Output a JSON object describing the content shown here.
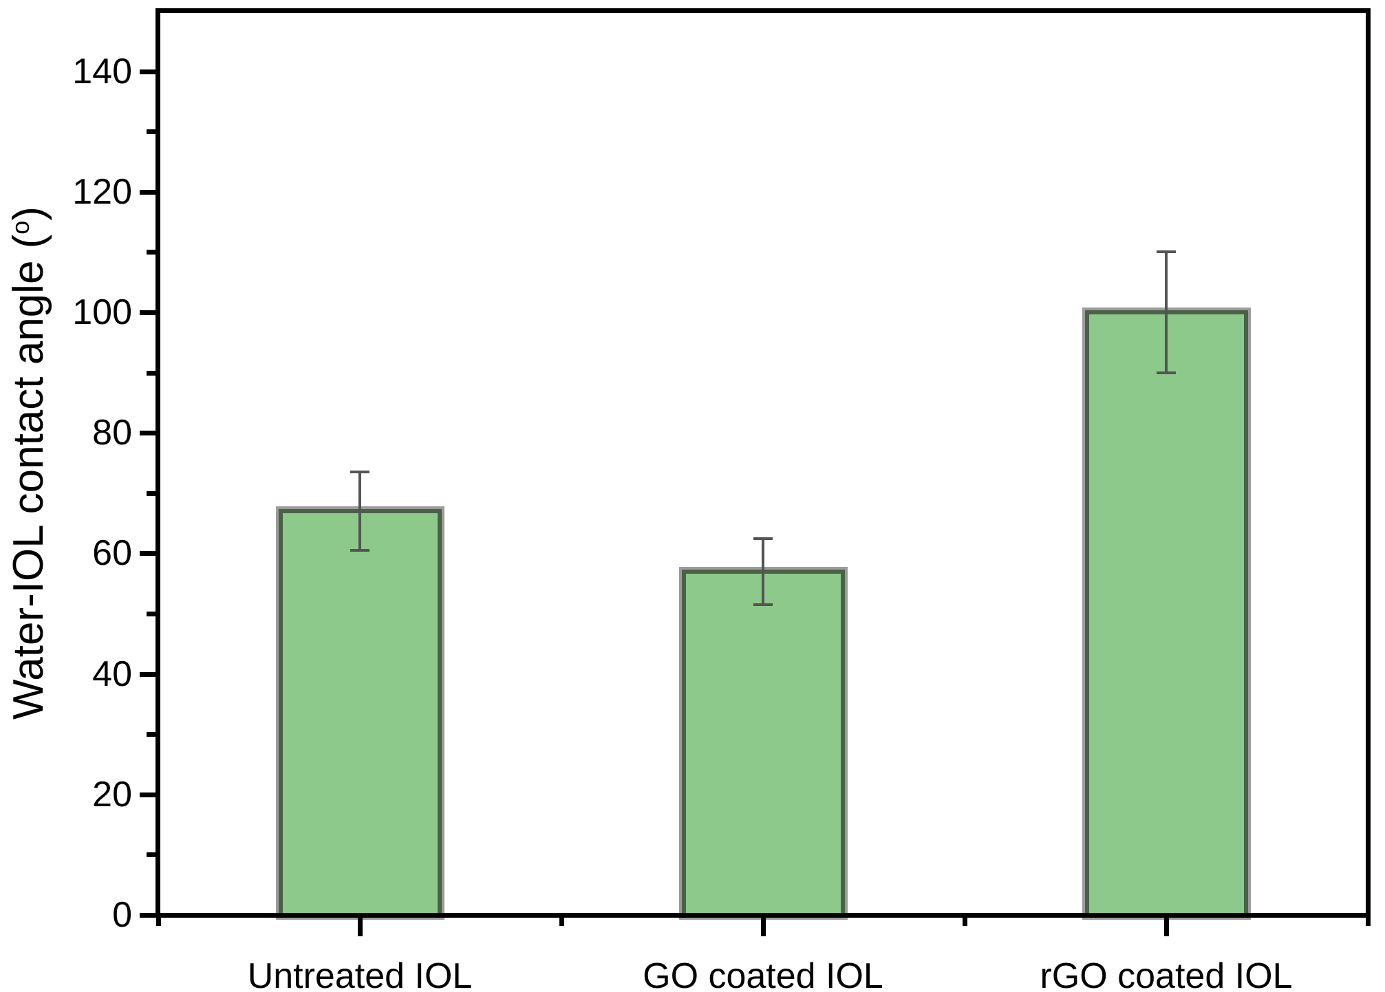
{
  "chart_data": {
    "type": "bar",
    "title": "",
    "xlabel": "",
    "ylabel": "Water-IOL contact angle (°)",
    "ylabel_render": {
      "pre": "Water-IOL contact angle (",
      "sup": "o",
      "post": ")"
    },
    "categories": [
      "Untreated IOL",
      "GO coated IOL",
      "rGO coated IOL"
    ],
    "series": [
      {
        "name": "Water-IOL contact angle",
        "values": [
          67,
          57,
          100
        ],
        "errors_plus": [
          6.5,
          5.5,
          10
        ],
        "errors_minus": [
          6.5,
          5.5,
          10
        ]
      }
    ],
    "ylim": [
      0,
      150
    ],
    "y_major_ticks": [
      0,
      20,
      40,
      60,
      80,
      100,
      120,
      140
    ],
    "y_minor_ticks": [
      10,
      30,
      50,
      70,
      90,
      110,
      130
    ],
    "grid": false,
    "legend": null,
    "colors": {
      "bar_fill": "#8EC98C",
      "bar_border": "#4A6147",
      "bar_outer_edge": "#9C9C9C",
      "error_bar": "#545454",
      "axis": "#000000",
      "background": "#FFFFFF",
      "text": "#000000"
    }
  }
}
